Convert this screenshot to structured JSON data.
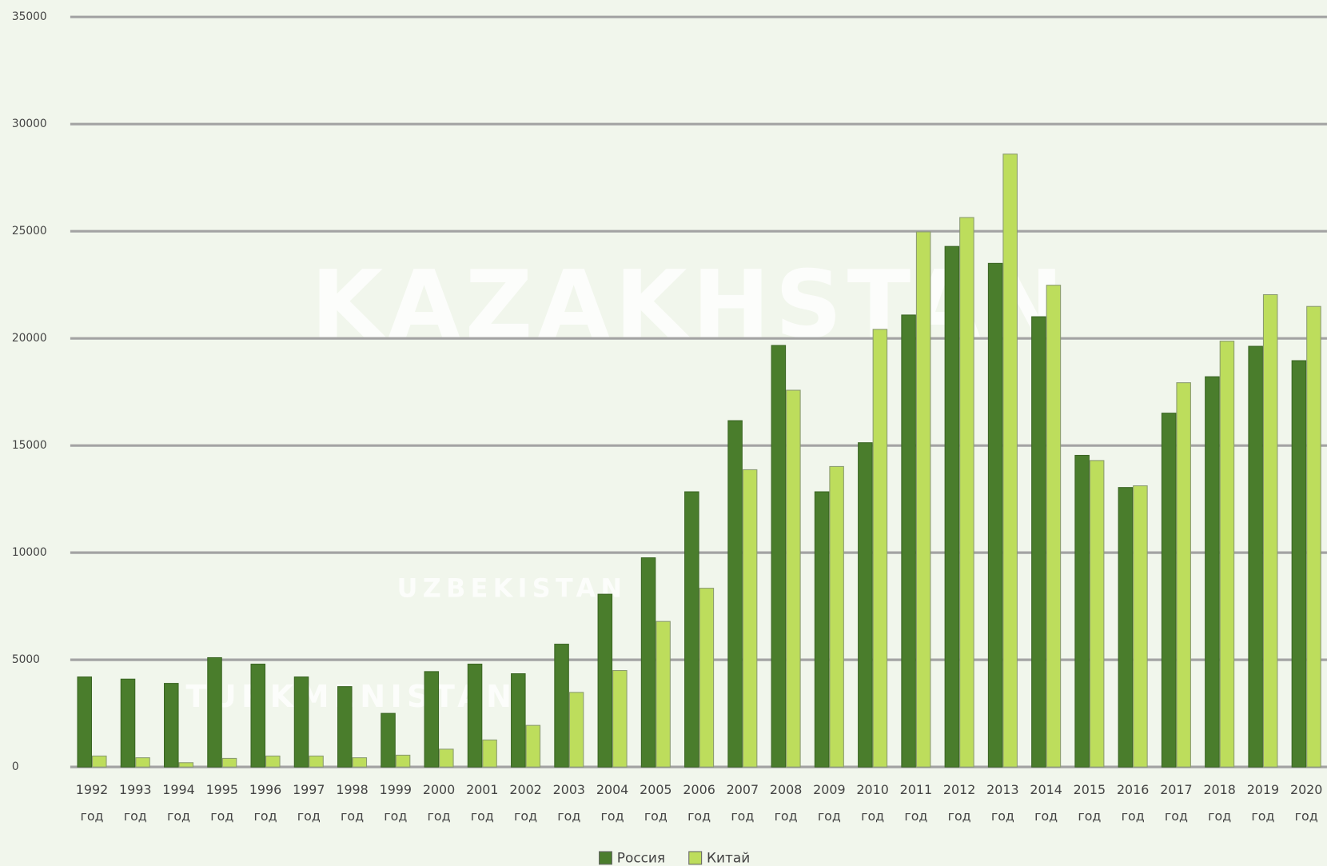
{
  "chart_data": {
    "type": "bar",
    "map_labels": [
      "KAZAKHSTAN",
      "UZBEKISTAN",
      "TURKMENISTAN"
    ],
    "categories": [
      "1992 год",
      "1993 год",
      "1994 год",
      "1995 год",
      "1996 год",
      "1997 год",
      "1998 год",
      "1999 год",
      "2000 год",
      "2001 год",
      "2002 год",
      "2003 год",
      "2004 год",
      "2005 год",
      "2006 год",
      "2007 год",
      "2008 год",
      "2009 год",
      "2010 год",
      "2011 год",
      "2012 год",
      "2013 год",
      "2014 год",
      "2015 год",
      "2016 год",
      "2017 год",
      "2018 год",
      "2019 год",
      "2020 год"
    ],
    "series": [
      {
        "name": "Россия",
        "color": "#4a7d2c",
        "values": [
          4200,
          4100,
          3900,
          5100,
          4800,
          4200,
          3750,
          2500,
          4450,
          4800,
          4350,
          5730,
          8060,
          9760,
          12840,
          16160,
          19670,
          12840,
          15130,
          21090,
          24290,
          23500,
          21010,
          14540,
          13040,
          16510,
          18210,
          19630,
          18960
        ]
      },
      {
        "name": "Китай",
        "color": "#bddd5c",
        "values": [
          510,
          430,
          200,
          400,
          510,
          510,
          430,
          550,
          830,
          1260,
          1940,
          3480,
          4500,
          6790,
          8340,
          13870,
          17580,
          14020,
          20420,
          24970,
          25640,
          28600,
          22480,
          14300,
          13120,
          17930,
          19870,
          22040,
          21490
        ]
      }
    ],
    "ylim": [
      0,
      35000
    ],
    "yticks": [
      0,
      5000,
      10000,
      15000,
      20000,
      25000,
      30000,
      35000
    ],
    "grid": true,
    "legend": "bottom"
  }
}
